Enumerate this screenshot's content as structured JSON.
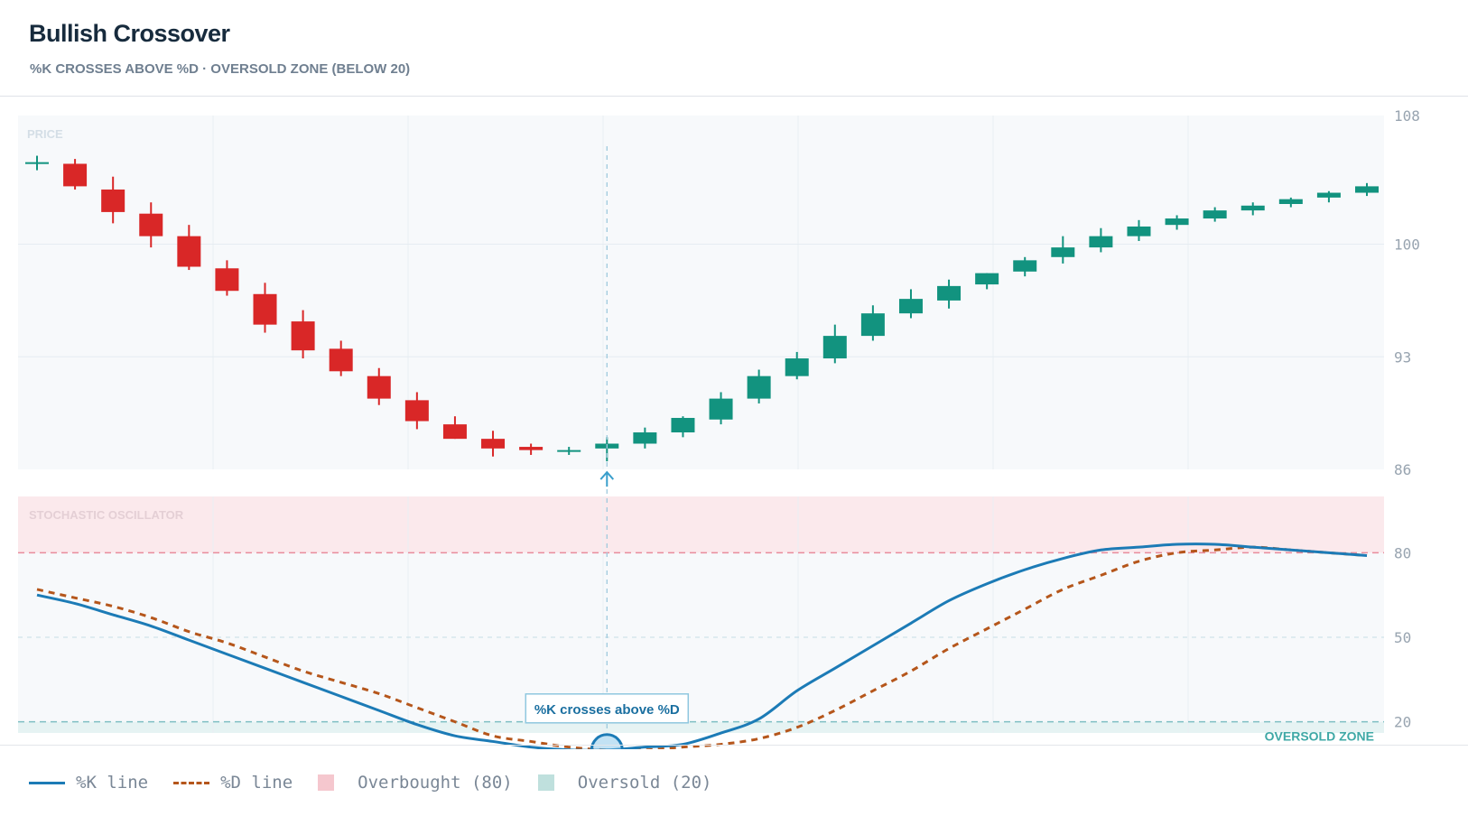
{
  "header": {
    "title": "Bullish Crossover",
    "subtitle": "%K CROSSES ABOVE %D · OVERSOLD ZONE (BELOW 20)"
  },
  "colors": {
    "bull": "#12937f",
    "bear": "#d92727",
    "k_line": "#1c7bb6",
    "d_line": "#b5561b",
    "overbought_band": "#fbe9ec",
    "oversold_band": "#e6f3f3",
    "overbought_line": "#e88c9c",
    "oversold_line": "#7fbfc3"
  },
  "chart_data": [
    {
      "type": "candlestick",
      "panel_label": "PRICE",
      "ylim": [
        86,
        108
      ],
      "yticks": [
        "108",
        "100",
        "93",
        "86"
      ],
      "grid": true,
      "candles": [
        {
          "open": 105.1,
          "high": 105.5,
          "low": 104.6,
          "close": 105.1
        },
        {
          "open": 105.0,
          "high": 105.3,
          "low": 103.4,
          "close": 103.6
        },
        {
          "open": 103.4,
          "high": 104.2,
          "low": 101.3,
          "close": 102.0
        },
        {
          "open": 101.9,
          "high": 102.6,
          "low": 99.8,
          "close": 100.5
        },
        {
          "open": 100.5,
          "high": 101.2,
          "low": 98.4,
          "close": 98.6
        },
        {
          "open": 98.5,
          "high": 99.0,
          "low": 96.8,
          "close": 97.1
        },
        {
          "open": 96.9,
          "high": 97.6,
          "low": 94.5,
          "close": 95.0
        },
        {
          "open": 95.2,
          "high": 95.9,
          "low": 92.9,
          "close": 93.4
        },
        {
          "open": 93.5,
          "high": 94.0,
          "low": 91.8,
          "close": 92.1
        },
        {
          "open": 91.8,
          "high": 92.3,
          "low": 90.0,
          "close": 90.4
        },
        {
          "open": 90.3,
          "high": 90.8,
          "low": 88.5,
          "close": 89.0
        },
        {
          "open": 88.8,
          "high": 89.3,
          "low": 87.9,
          "close": 87.9
        },
        {
          "open": 87.9,
          "high": 88.4,
          "low": 86.8,
          "close": 87.3
        },
        {
          "open": 87.4,
          "high": 87.6,
          "low": 86.9,
          "close": 87.2
        },
        {
          "open": 87.2,
          "high": 87.4,
          "low": 86.9,
          "close": 87.2
        },
        {
          "open": 87.3,
          "high": 88.0,
          "low": 86.5,
          "close": 87.6
        },
        {
          "open": 87.6,
          "high": 88.6,
          "low": 87.3,
          "close": 88.3
        },
        {
          "open": 88.3,
          "high": 89.3,
          "low": 88.0,
          "close": 89.2
        },
        {
          "open": 89.1,
          "high": 90.8,
          "low": 88.8,
          "close": 90.4
        },
        {
          "open": 90.4,
          "high": 92.2,
          "low": 90.1,
          "close": 91.8
        },
        {
          "open": 91.8,
          "high": 93.3,
          "low": 91.6,
          "close": 92.9
        },
        {
          "open": 92.9,
          "high": 95.0,
          "low": 92.6,
          "close": 94.3
        },
        {
          "open": 94.3,
          "high": 96.2,
          "low": 94.0,
          "close": 95.7
        },
        {
          "open": 95.7,
          "high": 97.2,
          "low": 95.4,
          "close": 96.6
        },
        {
          "open": 96.5,
          "high": 97.8,
          "low": 96.0,
          "close": 97.4
        },
        {
          "open": 97.5,
          "high": 98.2,
          "low": 97.2,
          "close": 98.2
        },
        {
          "open": 98.3,
          "high": 99.2,
          "low": 98.0,
          "close": 99.0
        },
        {
          "open": 99.2,
          "high": 100.5,
          "low": 98.8,
          "close": 99.8
        },
        {
          "open": 99.8,
          "high": 101.0,
          "low": 99.5,
          "close": 100.5
        },
        {
          "open": 100.5,
          "high": 101.5,
          "low": 100.2,
          "close": 101.1
        },
        {
          "open": 101.2,
          "high": 101.8,
          "low": 100.9,
          "close": 101.6
        },
        {
          "open": 101.6,
          "high": 102.3,
          "low": 101.4,
          "close": 102.1
        },
        {
          "open": 102.1,
          "high": 102.6,
          "low": 101.8,
          "close": 102.4
        },
        {
          "open": 102.5,
          "high": 102.9,
          "low": 102.3,
          "close": 102.8
        },
        {
          "open": 102.9,
          "high": 103.3,
          "low": 102.6,
          "close": 103.2
        },
        {
          "open": 103.2,
          "high": 103.8,
          "low": 103.0,
          "close": 103.6
        }
      ]
    },
    {
      "type": "line",
      "panel_label": "STOCHASTIC OSCILLATOR",
      "ylim": [
        0,
        100
      ],
      "yticks": [
        "80",
        "50",
        "20"
      ],
      "grid": true,
      "series": [
        {
          "name": "%K line",
          "values": [
            65,
            62,
            58,
            54,
            49,
            44,
            39,
            34,
            29,
            24,
            19,
            15,
            13,
            11,
            10,
            10,
            11,
            12,
            16,
            21,
            31,
            39,
            47,
            55,
            63,
            69,
            74,
            78,
            81,
            82,
            83,
            83,
            82,
            81,
            80,
            79
          ]
        },
        {
          "name": "%D line",
          "values": [
            67,
            64,
            61,
            57,
            52,
            48,
            43,
            38,
            34,
            30,
            25,
            20,
            15,
            13,
            11,
            10,
            10,
            11,
            12,
            14,
            18,
            24,
            31,
            38,
            46,
            53,
            60,
            67,
            72,
            77,
            80,
            81,
            82,
            81,
            80,
            79
          ]
        }
      ],
      "reference_lines": [
        {
          "value": 80,
          "label": ""
        },
        {
          "value": 50,
          "label": ""
        },
        {
          "value": 20,
          "label": "OVERSOLD ZONE"
        }
      ],
      "annotations": [
        {
          "text": "%K crosses above %D",
          "index": 15,
          "value": 10
        }
      ]
    }
  ],
  "legend": {
    "k_line": "%K line",
    "d_line": "%D line",
    "overbought": "Overbought (80)",
    "oversold": "Oversold (20)"
  }
}
